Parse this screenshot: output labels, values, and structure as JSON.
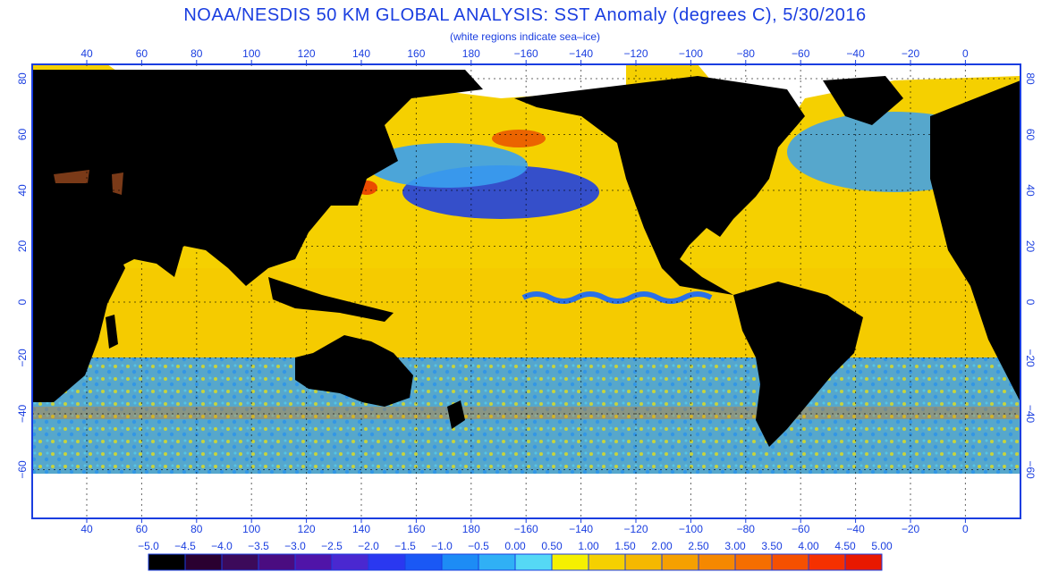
{
  "header": {
    "title": "NOAA/NESDIS 50 KM GLOBAL ANALYSIS: SST Anomaly (degrees C), 5/30/2016",
    "subtitle": "(white regions indicate sea–ice)"
  },
  "map": {
    "lon_ticks": [
      "40",
      "60",
      "80",
      "100",
      "120",
      "140",
      "160",
      "180",
      "−160",
      "−140",
      "−120",
      "−100",
      "−80",
      "−60",
      "−40",
      "−20",
      "0"
    ],
    "lat_ticks": [
      "80",
      "60",
      "40",
      "20",
      "0",
      "−20",
      "−40",
      "−60"
    ],
    "colors": {
      "land": "#000000",
      "ice": "#ffffff",
      "frame": "#1a3ee0",
      "warm_ocean": "#f5d000",
      "cool_ocean": "#3aa0f0",
      "cold_band": "#2040e0"
    }
  },
  "colorbar": {
    "labels": [
      "−5.0",
      "−4.5",
      "−4.0",
      "−3.5",
      "−3.0",
      "−2.5",
      "−2.0",
      "−1.5",
      "−1.0",
      "−0.5",
      "0.00",
      "0.50",
      "1.00",
      "1.50",
      "2.00",
      "2.50",
      "3.00",
      "3.50",
      "4.00",
      "4.50",
      "5.00"
    ],
    "colors": [
      "#000000",
      "#2a0030",
      "#3c0a5a",
      "#4a0c80",
      "#5014a8",
      "#4a28d0",
      "#2a38f0",
      "#1a58f5",
      "#1d8cf5",
      "#30b0f5",
      "#55d8f5",
      "#f5f000",
      "#f5d000",
      "#f5b800",
      "#f5a000",
      "#f58800",
      "#f56e00",
      "#f55000",
      "#f53000",
      "#e81800"
    ]
  }
}
